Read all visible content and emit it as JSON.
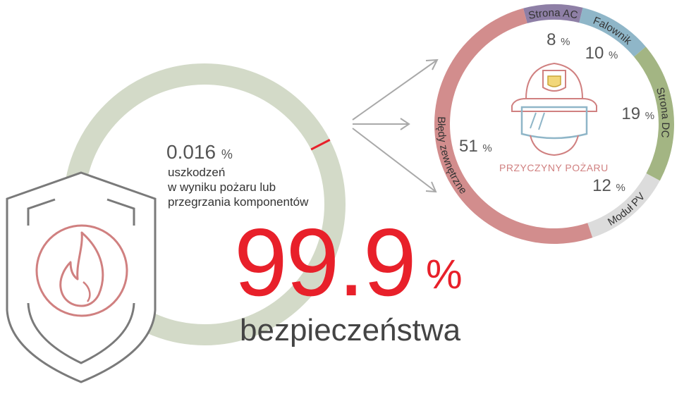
{
  "gauge": {
    "value_text": "0.016",
    "unit": "%",
    "description_lines": [
      "uszkodzeń",
      "w wyniku pożaru lub",
      "przegrzania komponentów"
    ],
    "fill_fraction": 0.999,
    "track_color": "#d3dac8",
    "marker_color": "#e8202a"
  },
  "headline": {
    "value": "99.9",
    "unit": "%",
    "label": "bezpieczeństwa",
    "color": "#e8202a"
  },
  "chart_data": {
    "type": "pie",
    "variant": "donut",
    "center_label": "PRZYCZYNY POŻARU",
    "unit": "%",
    "slices": [
      {
        "label": "Strona AC",
        "value": 8,
        "color": "#8e7fa6"
      },
      {
        "label": "Falownik",
        "value": 10,
        "color": "#8fb6c8"
      },
      {
        "label": "Strona DC",
        "value": 19,
        "color": "#a3b583"
      },
      {
        "label": "Moduł PV",
        "value": 12,
        "color": "#dcdcdc"
      },
      {
        "label": "Błędy zewnętrzne",
        "value": 51,
        "color": "#d28d8d"
      }
    ]
  },
  "icons": {
    "shield": "shield-icon",
    "flame": "flame-icon",
    "helmet": "firefighter-helmet-icon",
    "arrows": "arrow-right-icon"
  }
}
